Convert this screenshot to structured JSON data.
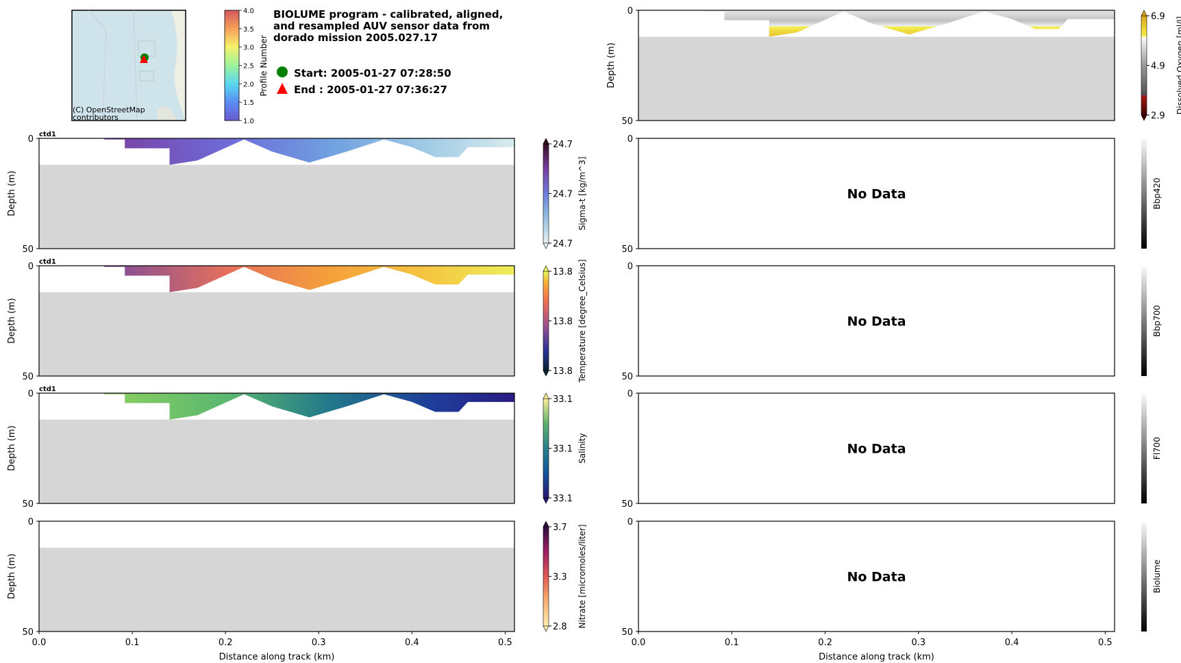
{
  "header": {
    "title": "BIOLUME program - calibrated, aligned,\nand resampled AUV sensor data from\ndorado mission 2005.027.17",
    "start_label": "Start: 2005-01-27 07:28:50",
    "end_label": "End  : 2005-01-27 07:36:27",
    "start_marker_color": "#008000",
    "end_marker_color": "#ff0000"
  },
  "map": {
    "attribution": "(C) OpenStreetMap\ncontributors",
    "attribution_line1": "(C) OpenStreetMap",
    "attribution_line2": "contributors",
    "profile_colorbar": {
      "label": "Profile Number",
      "ticks": [
        "1.0",
        "1.5",
        "2.0",
        "2.5",
        "3.0",
        "3.5",
        "4.0"
      ],
      "min": 1.0,
      "max": 4.0
    }
  },
  "chart_data": [
    {
      "type": "heatmap",
      "id": "sigma_t",
      "panel_title": "ctd1",
      "ylabel": "Depth (m)",
      "xlabel": "",
      "ylim": [
        50,
        0
      ],
      "xlim": [
        0.0,
        0.51
      ],
      "yticks": [
        "0",
        "50"
      ],
      "xticks": [],
      "colorbar": {
        "label": "Sigma-t [kg/m^3]",
        "ticks": [
          "24.7",
          "24.7",
          "24.7"
        ],
        "cmap": "dense"
      },
      "has_data": true,
      "seafloor_depth_m": 12
    },
    {
      "type": "heatmap",
      "id": "temperature",
      "panel_title": "ctd1",
      "ylabel": "Depth (m)",
      "xlabel": "",
      "ylim": [
        50,
        0
      ],
      "xlim": [
        0.0,
        0.51
      ],
      "yticks": [
        "0",
        "50"
      ],
      "xticks": [],
      "colorbar": {
        "label": "Temperature [degree_Celsius]",
        "ticks": [
          "13.8",
          "13.8",
          "13.8"
        ],
        "cmap": "thermal"
      },
      "has_data": true,
      "seafloor_depth_m": 12
    },
    {
      "type": "heatmap",
      "id": "salinity",
      "panel_title": "ctd1",
      "ylabel": "Depth (m)",
      "xlabel": "",
      "ylim": [
        50,
        0
      ],
      "xlim": [
        0.0,
        0.51
      ],
      "yticks": [
        "0",
        "50"
      ],
      "xticks": [],
      "colorbar": {
        "label": "Salinity",
        "ticks": [
          "33.1",
          "33.1",
          "33.1"
        ],
        "cmap": "haline"
      },
      "has_data": true,
      "seafloor_depth_m": 12
    },
    {
      "type": "heatmap",
      "id": "nitrate",
      "panel_title": "",
      "ylabel": "Depth (m)",
      "xlabel": "Distance along track (km)",
      "ylim": [
        50,
        0
      ],
      "xlim": [
        0.0,
        0.51
      ],
      "yticks": [
        "0",
        "50"
      ],
      "xticks": [
        "0.0",
        "0.1",
        "0.2",
        "0.3",
        "0.4",
        "0.5"
      ],
      "colorbar": {
        "label": "Nitrate [micromoles/liter]",
        "ticks": [
          "2.8",
          "3.3",
          "3.7"
        ],
        "cmap": "matter"
      },
      "has_data": false,
      "seafloor_depth_m": 12
    },
    {
      "type": "heatmap",
      "id": "dissolved_oxygen",
      "panel_title": "",
      "ylabel": "Depth (m)",
      "xlabel": "",
      "ylim": [
        50,
        0
      ],
      "xlim": [
        0.0,
        0.51
      ],
      "yticks": [
        "0",
        "50"
      ],
      "xticks": [],
      "colorbar": {
        "label": "Dissolved Oxygen [ml/l]",
        "ticks": [
          "2.9",
          "4.9",
          "6.9"
        ],
        "cmap": "oxy"
      },
      "has_data": true,
      "seafloor_depth_m": 12
    },
    {
      "type": "heatmap",
      "id": "bbp420",
      "panel_title": "",
      "ylabel": "",
      "xlabel": "",
      "ylim": [
        50,
        0
      ],
      "xlim": [
        0.0,
        0.51
      ],
      "yticks": [
        "0",
        "50"
      ],
      "xticks": [],
      "colorbar": {
        "label": "Bbp420",
        "ticks": [],
        "cmap": "gray"
      },
      "has_data": false,
      "no_data_text": "No Data"
    },
    {
      "type": "heatmap",
      "id": "bbp700",
      "panel_title": "",
      "ylabel": "",
      "xlabel": "",
      "ylim": [
        50,
        0
      ],
      "xlim": [
        0.0,
        0.51
      ],
      "yticks": [
        "0",
        "50"
      ],
      "xticks": [],
      "colorbar": {
        "label": "Bbp700",
        "ticks": [],
        "cmap": "gray"
      },
      "has_data": false,
      "no_data_text": "No Data"
    },
    {
      "type": "heatmap",
      "id": "fl700",
      "panel_title": "",
      "ylabel": "",
      "xlabel": "",
      "ylim": [
        50,
        0
      ],
      "xlim": [
        0.0,
        0.51
      ],
      "yticks": [
        "0",
        "50"
      ],
      "xticks": [],
      "colorbar": {
        "label": "Fl700",
        "ticks": [],
        "cmap": "gray"
      },
      "has_data": false,
      "no_data_text": "No Data"
    },
    {
      "type": "heatmap",
      "id": "biolume",
      "panel_title": "",
      "ylabel": "",
      "xlabel": "Distance along track (km)",
      "ylim": [
        50,
        0
      ],
      "xlim": [
        0.0,
        0.51
      ],
      "yticks": [
        "0",
        "50"
      ],
      "xticks": [
        "0.0",
        "0.1",
        "0.2",
        "0.3",
        "0.4",
        "0.5"
      ],
      "colorbar": {
        "label": "Biolume",
        "ticks": [],
        "cmap": "gray"
      },
      "has_data": false,
      "no_data_text": "No Data"
    }
  ],
  "profile": {
    "note": "AUV yo-yo track envelope: distance (km) vs max sampled depth (m)",
    "track_x_km": [
      0.07,
      0.092,
      0.092,
      0.14,
      0.14,
      0.17,
      0.22,
      0.25,
      0.29,
      0.33,
      0.37,
      0.4,
      0.425,
      0.45,
      0.46,
      0.51
    ],
    "track_depth_m": [
      0.5,
      0.5,
      4.5,
      4.5,
      12,
      10,
      0.5,
      6,
      11,
      6,
      0.5,
      4,
      8.5,
      8.5,
      4,
      4
    ]
  }
}
